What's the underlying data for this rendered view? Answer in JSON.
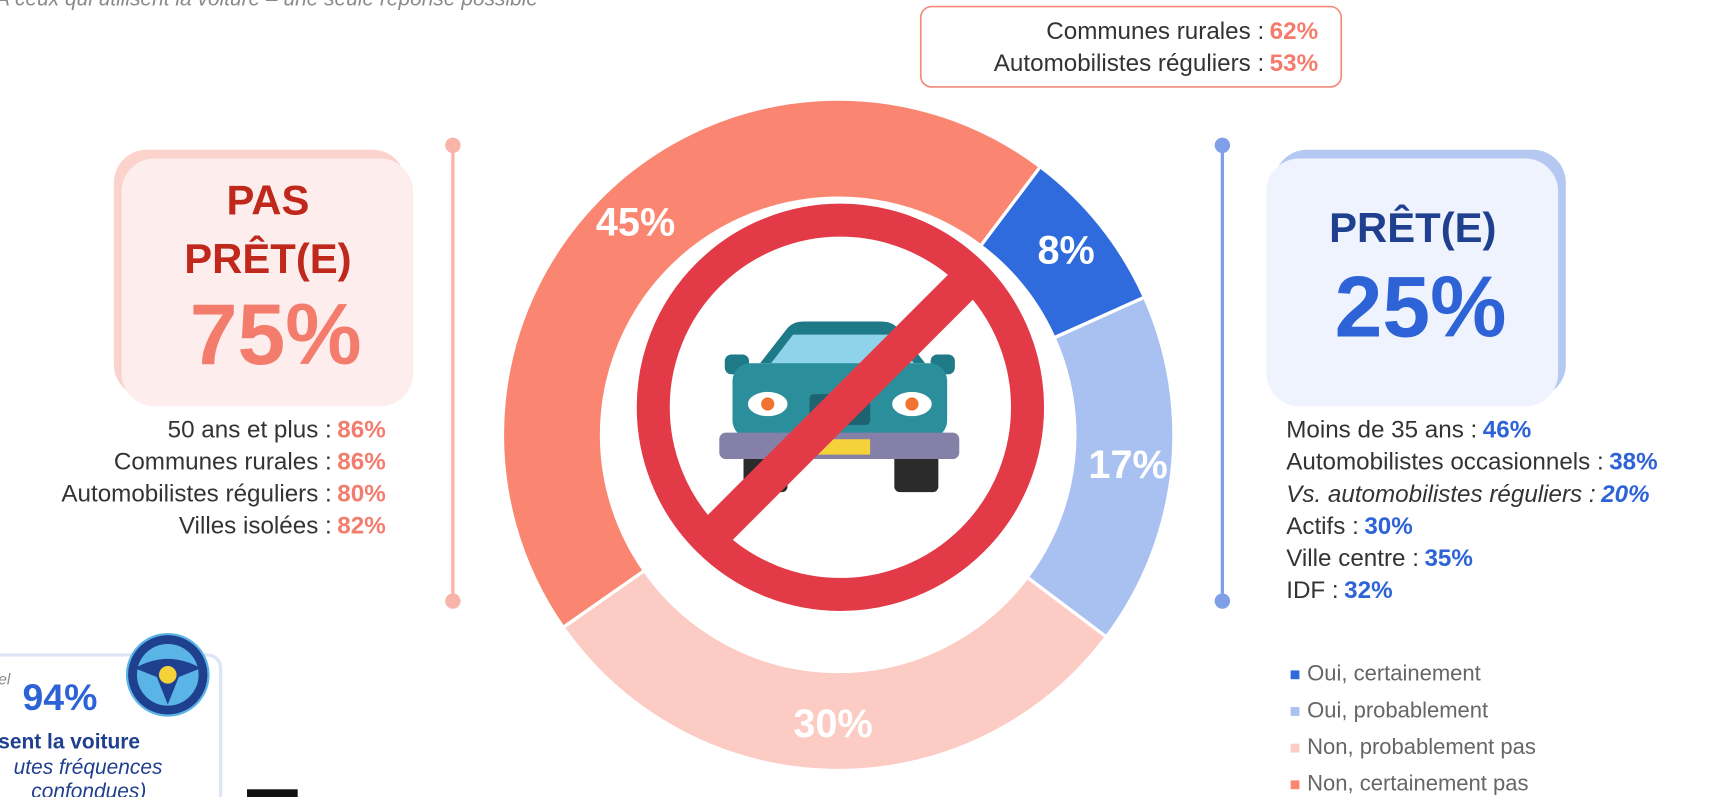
{
  "subtitle": "A ceux qui utilisent la voiture – une seule réponse possible",
  "callout": {
    "rows": [
      {
        "label": "Communes rurales :",
        "value": "62%"
      },
      {
        "label": "Automobilistes réguliers :",
        "value": "53%"
      }
    ]
  },
  "not_ready": {
    "title_line1": "PAS",
    "title_line2": "PRÊT(E)",
    "total": "75%",
    "rows": [
      {
        "label": "50 ans et plus :",
        "value": "86%"
      },
      {
        "label": "Communes rurales :",
        "value": "86%"
      },
      {
        "label": "Automobilistes réguliers :",
        "value": "80%"
      },
      {
        "label": "Villes isolées :",
        "value": "82%"
      }
    ]
  },
  "ready": {
    "title": "PRÊT(E)",
    "total": "25%",
    "rows": [
      {
        "label": "Moins de 35 ans :",
        "value": "46%"
      },
      {
        "label": "Automobilistes occasionnels :",
        "value": "38%"
      },
      {
        "label": "Vs. automobilistes réguliers :",
        "value": "20%",
        "italic": true
      },
      {
        "label": "Actifs :",
        "value": "30%"
      },
      {
        "label": "Ville centre :",
        "value": "35%"
      },
      {
        "label": "IDF :",
        "value": "32%"
      }
    ]
  },
  "usage_box": {
    "note": "el",
    "value": "94%",
    "line1": "sent la voiture",
    "line2": "utes fréquences",
    "line3": "confondues)"
  },
  "chart_data": {
    "type": "pie",
    "donut": true,
    "categories": [
      "Oui, certainement",
      "Oui, probablement",
      "Non, probablement pas",
      "Non, certainement pas"
    ],
    "values": [
      8,
      17,
      30,
      45
    ],
    "value_labels": [
      "8%",
      "17%",
      "30%",
      "45%"
    ],
    "colors": [
      "#2f6bdc",
      "#a9c1f0",
      "#fccbc3",
      "#fa8672"
    ]
  }
}
